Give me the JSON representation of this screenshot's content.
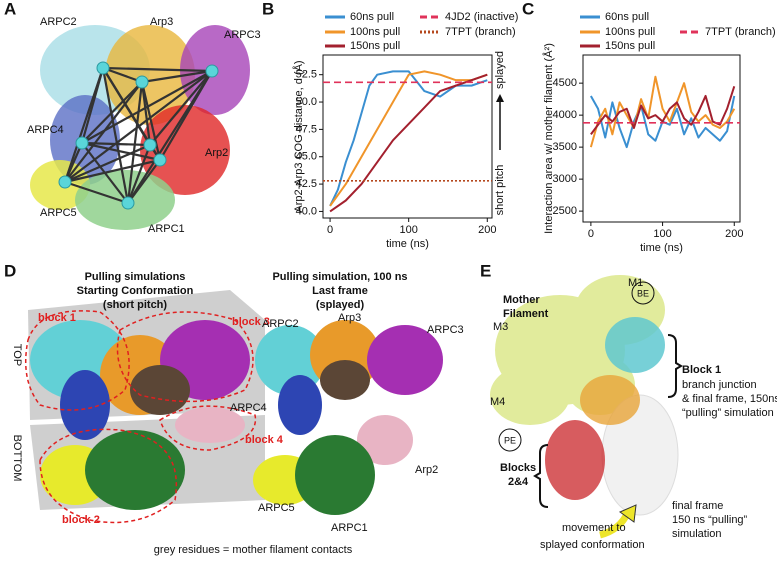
{
  "chart_data": [
    {
      "type": "line",
      "xlabel": "time (ns)",
      "ylabel": "Arp2-Arp3 COG distance, d (Å)",
      "xlim": [
        -9,
        206
      ],
      "xticks": [
        0,
        100,
        200
      ],
      "ylim": [
        39.4,
        54.3
      ],
      "yticks": [
        {
          "value": 40,
          "label": "40.0"
        },
        42.5,
        {
          "value": 45,
          "label": "45.0"
        },
        47.5,
        {
          "value": 50,
          "label": "50.0"
        },
        52.5
      ],
      "annotations": [
        "short pitch",
        "splayed"
      ],
      "series": [
        {
          "name": "60ns pull",
          "color": "#3a8fd1",
          "x": [
            0,
            10,
            20,
            30,
            40,
            50,
            60,
            80,
            100,
            120,
            140,
            160,
            180,
            200
          ],
          "values": [
            40.5,
            42,
            44.5,
            46.5,
            49,
            51.5,
            52.5,
            52.8,
            52.8,
            51,
            50.5,
            51.5,
            51.5,
            52
          ]
        },
        {
          "name": "100ns pull",
          "color": "#f0952a",
          "x": [
            0,
            20,
            40,
            60,
            80,
            100,
            120,
            140,
            160,
            180,
            200
          ],
          "values": [
            40.5,
            42.5,
            45,
            47.5,
            50,
            52.5,
            52.8,
            52.5,
            52,
            52,
            52.5
          ]
        },
        {
          "name": "150ns pull",
          "color": "#a3202e",
          "x": [
            0,
            20,
            40,
            60,
            80,
            100,
            120,
            140,
            160,
            180,
            200
          ],
          "values": [
            40,
            41,
            42.5,
            44.5,
            46.5,
            48,
            49.5,
            51,
            51.5,
            52,
            52.5
          ]
        }
      ],
      "hlines": [
        {
          "name": "4JD2 (inactive)",
          "value": 51.8,
          "color": "#e0325a",
          "dash": "dashed"
        },
        {
          "name": "7TPT (branch)",
          "value": 42.8,
          "color": "#b5481e",
          "dash": "dotted"
        }
      ]
    },
    {
      "type": "line",
      "xlabel": "time (ns)",
      "ylabel": "Interaction area w/ mother filament (Å²)",
      "xlim": [
        -11,
        208
      ],
      "xticks": [
        0,
        100,
        200
      ],
      "ylim": [
        2330,
        4940
      ],
      "yticks": [
        2500,
        3000,
        3500,
        4000,
        4500
      ],
      "series": [
        {
          "name": "60ns pull",
          "color": "#3a8fd1",
          "x": [
            0,
            10,
            20,
            30,
            40,
            50,
            60,
            70,
            80,
            90,
            100,
            110,
            120,
            130,
            140,
            150,
            160,
            170,
            180,
            190,
            200
          ],
          "values": [
            4300,
            4100,
            3650,
            4200,
            3800,
            3500,
            3900,
            4150,
            3700,
            3600,
            3900,
            3850,
            4100,
            3700,
            3950,
            3650,
            3800,
            3700,
            3600,
            3750,
            4300
          ]
        },
        {
          "name": "100ns pull",
          "color": "#f0952a",
          "x": [
            0,
            10,
            20,
            30,
            40,
            50,
            60,
            70,
            80,
            90,
            100,
            110,
            120,
            130,
            140,
            150,
            160,
            170,
            180,
            190,
            200
          ],
          "values": [
            3500,
            3900,
            4100,
            3700,
            4200,
            4000,
            3800,
            4250,
            3950,
            4600,
            4100,
            3900,
            4200,
            4500,
            4050,
            3900,
            4000,
            3850,
            3800,
            3900,
            4100
          ]
        },
        {
          "name": "150ns pull",
          "color": "#a3202e",
          "x": [
            0,
            10,
            20,
            30,
            40,
            50,
            60,
            70,
            80,
            90,
            100,
            110,
            120,
            130,
            140,
            150,
            160,
            170,
            180,
            190,
            200
          ],
          "values": [
            3700,
            3850,
            4000,
            3900,
            4050,
            4100,
            3800,
            4150,
            3950,
            4000,
            3900,
            4100,
            4200,
            3950,
            3850,
            4050,
            4300,
            3900,
            3850,
            4100,
            4450
          ]
        }
      ],
      "hlines": [
        {
          "name": "7TPT (branch)",
          "value": 3880,
          "color": "#e0325a",
          "dash": "dashed"
        }
      ]
    }
  ],
  "panels": {
    "A": {
      "letter": "A",
      "labels": [
        "ARPC2",
        "Arp3",
        "ARPC3",
        "ARPC4",
        "Arp2",
        "ARPC5",
        "ARPC1"
      ]
    },
    "B": {
      "letter": "B"
    },
    "C": {
      "letter": "C"
    },
    "D": {
      "letter": "D",
      "left_title": [
        "Pulling simulations",
        "Starting Conformation",
        "(short pitch)"
      ],
      "blocks": [
        "block 1",
        "block 3",
        "block 4",
        "block 2"
      ],
      "regions": [
        "TOP",
        "BOTTOM"
      ],
      "right_title": [
        "Pulling simulation, 100 ns",
        "Last frame",
        "(splayed)"
      ],
      "right_labels": [
        "ARPC2",
        "Arp3",
        "ARPC3",
        "ARPC4",
        "Arp2",
        "ARPC5",
        "ARPC1"
      ],
      "caption": "grey residues = mother filament contacts"
    },
    "E": {
      "letter": "E",
      "title": [
        "Mother",
        "Filament"
      ],
      "subunits": [
        "M1",
        "M3",
        "M4"
      ],
      "ends": [
        "BE",
        "PE"
      ],
      "block1": [
        "Block 1",
        "branch junction",
        "& final frame, 150ns",
        "“pulling” simulation"
      ],
      "blocks24": [
        "Blocks",
        "2&4"
      ],
      "final": [
        "final frame",
        "150 ns “pulling”",
        "simulation"
      ],
      "movement": [
        "movement to",
        "splayed conformation"
      ]
    }
  }
}
